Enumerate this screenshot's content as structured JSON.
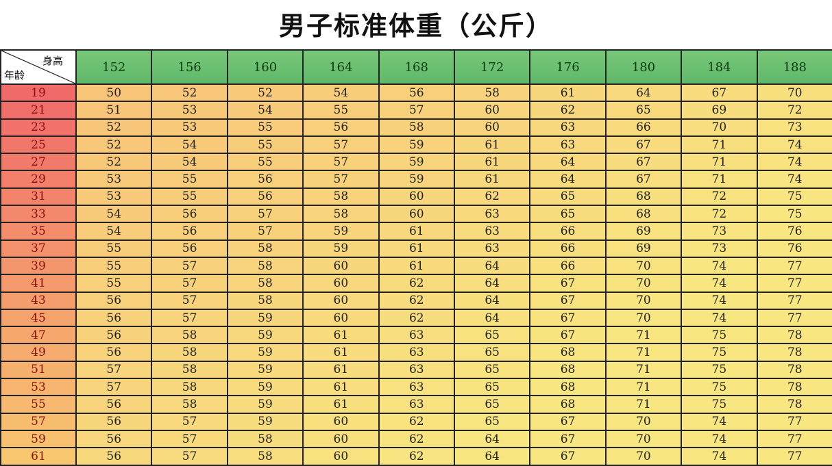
{
  "title": "男子标准体重（公斤）",
  "corner": {
    "height_label": "身高",
    "age_label": "年龄"
  },
  "heights": [
    "152",
    "156",
    "160",
    "164",
    "168",
    "172",
    "176",
    "180",
    "184",
    "188"
  ],
  "colors": {
    "header_green": "#6cc070",
    "age_red": "#f06a6a",
    "cell_orange": "#f8c478",
    "cell_yellow": "#f8e680"
  },
  "rows": [
    {
      "age": "19",
      "w": [
        "50",
        "52",
        "52",
        "54",
        "56",
        "58",
        "61",
        "64",
        "67",
        "70"
      ]
    },
    {
      "age": "21",
      "w": [
        "51",
        "53",
        "54",
        "55",
        "57",
        "60",
        "62",
        "65",
        "69",
        "72"
      ]
    },
    {
      "age": "23",
      "w": [
        "52",
        "53",
        "55",
        "56",
        "58",
        "60",
        "63",
        "66",
        "70",
        "73"
      ]
    },
    {
      "age": "25",
      "w": [
        "52",
        "54",
        "55",
        "57",
        "59",
        "61",
        "63",
        "67",
        "71",
        "74"
      ]
    },
    {
      "age": "27",
      "w": [
        "52",
        "54",
        "55",
        "57",
        "59",
        "61",
        "64",
        "67",
        "71",
        "74"
      ]
    },
    {
      "age": "29",
      "w": [
        "53",
        "55",
        "56",
        "57",
        "59",
        "61",
        "64",
        "67",
        "71",
        "74"
      ]
    },
    {
      "age": "31",
      "w": [
        "53",
        "55",
        "56",
        "58",
        "60",
        "62",
        "65",
        "68",
        "72",
        "75"
      ]
    },
    {
      "age": "33",
      "w": [
        "54",
        "56",
        "57",
        "58",
        "60",
        "63",
        "65",
        "68",
        "72",
        "75"
      ]
    },
    {
      "age": "35",
      "w": [
        "54",
        "56",
        "57",
        "59",
        "61",
        "63",
        "66",
        "69",
        "73",
        "76"
      ]
    },
    {
      "age": "37",
      "w": [
        "55",
        "56",
        "58",
        "59",
        "61",
        "63",
        "66",
        "69",
        "73",
        "76"
      ]
    },
    {
      "age": "39",
      "w": [
        "55",
        "57",
        "58",
        "60",
        "61",
        "64",
        "66",
        "70",
        "74",
        "77"
      ]
    },
    {
      "age": "41",
      "w": [
        "55",
        "57",
        "58",
        "60",
        "62",
        "64",
        "67",
        "70",
        "74",
        "77"
      ]
    },
    {
      "age": "43",
      "w": [
        "56",
        "57",
        "58",
        "60",
        "62",
        "64",
        "67",
        "70",
        "74",
        "77"
      ]
    },
    {
      "age": "45",
      "w": [
        "56",
        "57",
        "59",
        "60",
        "62",
        "64",
        "67",
        "70",
        "74",
        "77"
      ]
    },
    {
      "age": "47",
      "w": [
        "56",
        "58",
        "59",
        "61",
        "63",
        "65",
        "67",
        "71",
        "75",
        "78"
      ]
    },
    {
      "age": "49",
      "w": [
        "56",
        "58",
        "59",
        "61",
        "63",
        "65",
        "68",
        "71",
        "75",
        "78"
      ]
    },
    {
      "age": "51",
      "w": [
        "57",
        "58",
        "59",
        "61",
        "63",
        "65",
        "68",
        "71",
        "75",
        "78"
      ]
    },
    {
      "age": "53",
      "w": [
        "57",
        "58",
        "59",
        "61",
        "63",
        "65",
        "68",
        "71",
        "75",
        "78"
      ]
    },
    {
      "age": "55",
      "w": [
        "56",
        "58",
        "59",
        "61",
        "63",
        "65",
        "68",
        "71",
        "75",
        "78"
      ]
    },
    {
      "age": "57",
      "w": [
        "56",
        "57",
        "59",
        "60",
        "62",
        "65",
        "67",
        "70",
        "74",
        "77"
      ]
    },
    {
      "age": "59",
      "w": [
        "56",
        "57",
        "58",
        "60",
        "62",
        "64",
        "67",
        "70",
        "74",
        "77"
      ]
    },
    {
      "age": "61",
      "w": [
        "56",
        "57",
        "58",
        "60",
        "62",
        "64",
        "67",
        "70",
        "74",
        "77"
      ]
    }
  ]
}
